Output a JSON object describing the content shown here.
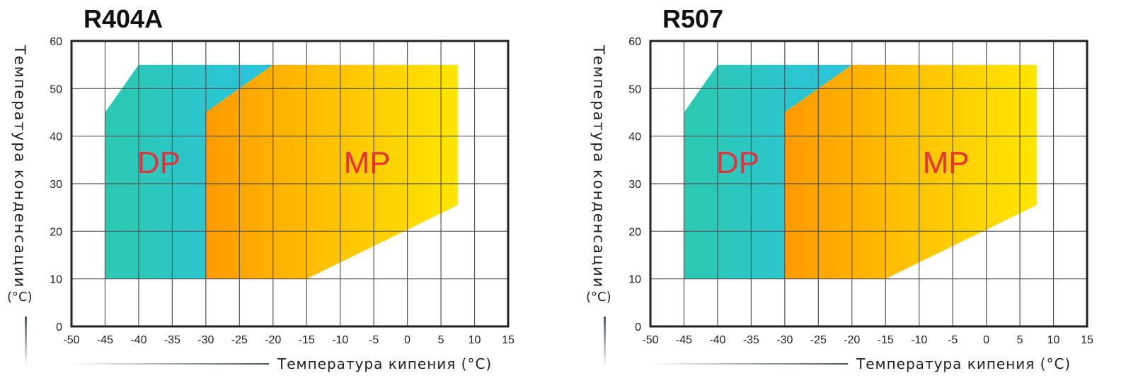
{
  "chart_data": [
    {
      "type": "area",
      "title": "R404A",
      "xlabel": "Температура кипения (°C)",
      "ylabel": "Температура конденсации",
      "ylabel_unit": "(°C)",
      "xlim": [
        -50,
        15
      ],
      "ylim": [
        0,
        60
      ],
      "x_ticks": [
        "-50",
        "-45",
        "-40",
        "-35",
        "-30",
        "-25",
        "-20",
        "-15",
        "-10",
        "-5",
        "0",
        "5",
        "10",
        "15"
      ],
      "y_ticks": [
        "0",
        "10",
        "20",
        "30",
        "40",
        "50",
        "60"
      ],
      "grid": true,
      "series": [
        {
          "name": "DP",
          "color": "#2fc8c0",
          "polygon": [
            [
              -45,
              10
            ],
            [
              -45,
              45
            ],
            [
              -40,
              55
            ],
            [
              -20,
              55
            ],
            [
              -30,
              45
            ],
            [
              -30,
              10
            ]
          ]
        },
        {
          "name": "MP",
          "color": "#ffd000",
          "polygon": [
            [
              -30,
              10
            ],
            [
              -30,
              45
            ],
            [
              -20,
              55
            ],
            [
              7.5,
              55
            ],
            [
              7.5,
              25.5
            ],
            [
              -15,
              10
            ]
          ]
        }
      ],
      "overlap_color": "#4a9a82",
      "annotations": [
        {
          "text": "DP",
          "x": -37,
          "y": 34,
          "color": "#e8303a"
        },
        {
          "text": "MP",
          "x": -6,
          "y": 34,
          "color": "#e8303a"
        }
      ]
    },
    {
      "type": "area",
      "title": "R507",
      "xlabel": "Температура кипения (°C)",
      "ylabel": "Температура конденсации",
      "ylabel_unit": "(°C)",
      "xlim": [
        -50,
        15
      ],
      "ylim": [
        0,
        60
      ],
      "x_ticks": [
        "-50",
        "-45",
        "-40",
        "-35",
        "-30",
        "-25",
        "-20",
        "-15",
        "-10",
        "-5",
        "0",
        "5",
        "10",
        "15"
      ],
      "y_ticks": [
        "0",
        "10",
        "20",
        "30",
        "40",
        "50",
        "60"
      ],
      "grid": true,
      "series": [
        {
          "name": "DP",
          "color": "#2fc8c0",
          "polygon": [
            [
              -45,
              10
            ],
            [
              -45,
              45
            ],
            [
              -40,
              55
            ],
            [
              -20,
              55
            ],
            [
              -30,
              45
            ],
            [
              -30,
              10
            ]
          ]
        },
        {
          "name": "MP",
          "color": "#ffd000",
          "polygon": [
            [
              -30,
              10
            ],
            [
              -30,
              45
            ],
            [
              -20,
              55
            ],
            [
              7.5,
              55
            ],
            [
              7.5,
              25.5
            ],
            [
              -15,
              10
            ]
          ]
        }
      ],
      "overlap_color": "#4a9a82",
      "annotations": [
        {
          "text": "DP",
          "x": -37,
          "y": 34,
          "color": "#e8303a"
        },
        {
          "text": "MP",
          "x": -6,
          "y": 34,
          "color": "#e8303a"
        }
      ]
    }
  ]
}
